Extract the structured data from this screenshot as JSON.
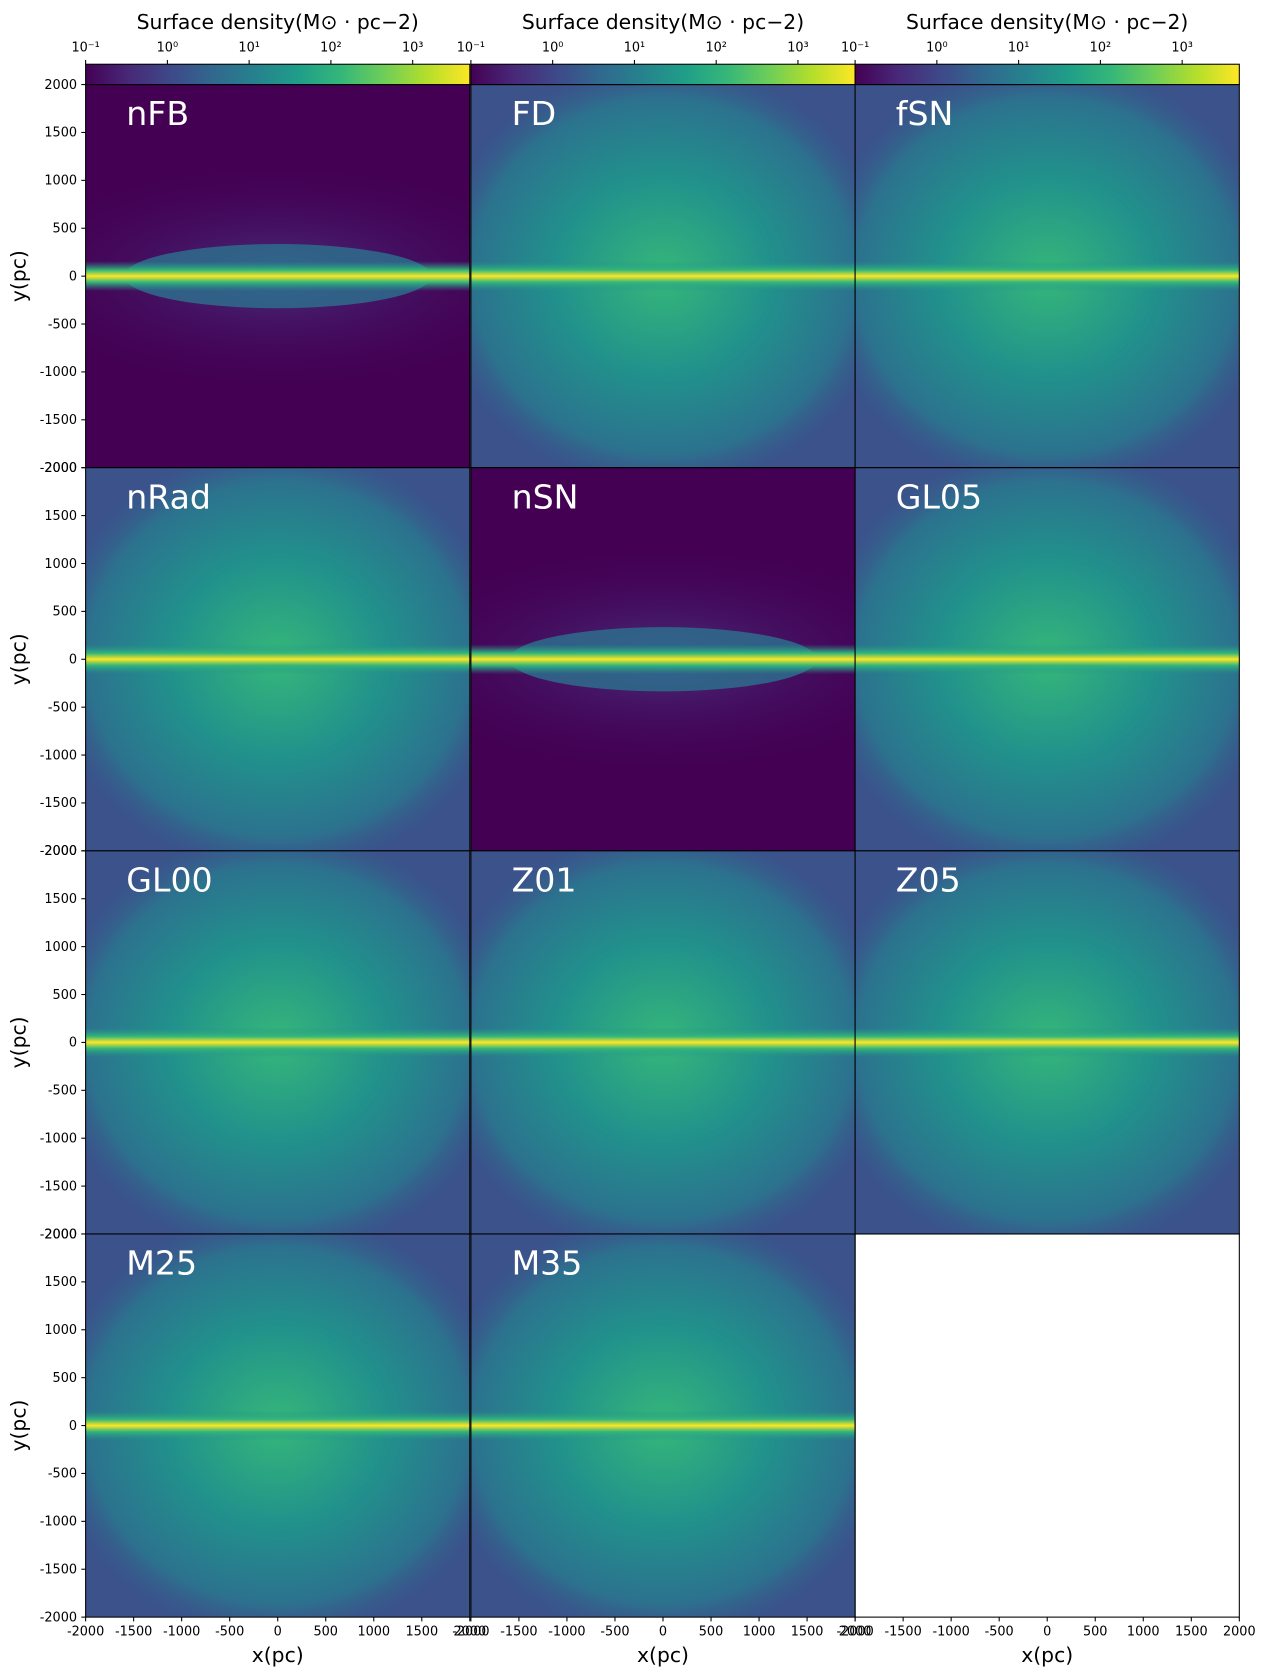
{
  "chart_data": {
    "type": "heatmap",
    "colormap": "viridis",
    "colorbar": {
      "label": "Surface density(M⊙ · pc−2)",
      "scale": "log",
      "clim": [
        0.1,
        5000
      ],
      "ticks": [
        {
          "value": 0.1,
          "label": "10⁻¹"
        },
        {
          "value": 1,
          "label": "10⁰"
        },
        {
          "value": 10,
          "label": "10¹"
        },
        {
          "value": 100,
          "label": "10²"
        },
        {
          "value": 1000,
          "label": "10³"
        }
      ]
    },
    "xlabel": "x(pc)",
    "ylabel": "y(pc)",
    "xlim": [
      -2000,
      2000
    ],
    "ylim": [
      -2000,
      2000
    ],
    "xticks": [
      -2000,
      -1500,
      -1000,
      -500,
      0,
      500,
      1000,
      1500,
      2000
    ],
    "yticks": [
      -2000,
      -1500,
      -1000,
      -500,
      0,
      500,
      1000,
      1500,
      2000
    ],
    "panels": [
      "nFB",
      "FD",
      "fSN",
      "nRad",
      "nSN",
      "GL05",
      "GL00",
      "Z01",
      "Z05",
      "M25",
      "M35"
    ]
  }
}
